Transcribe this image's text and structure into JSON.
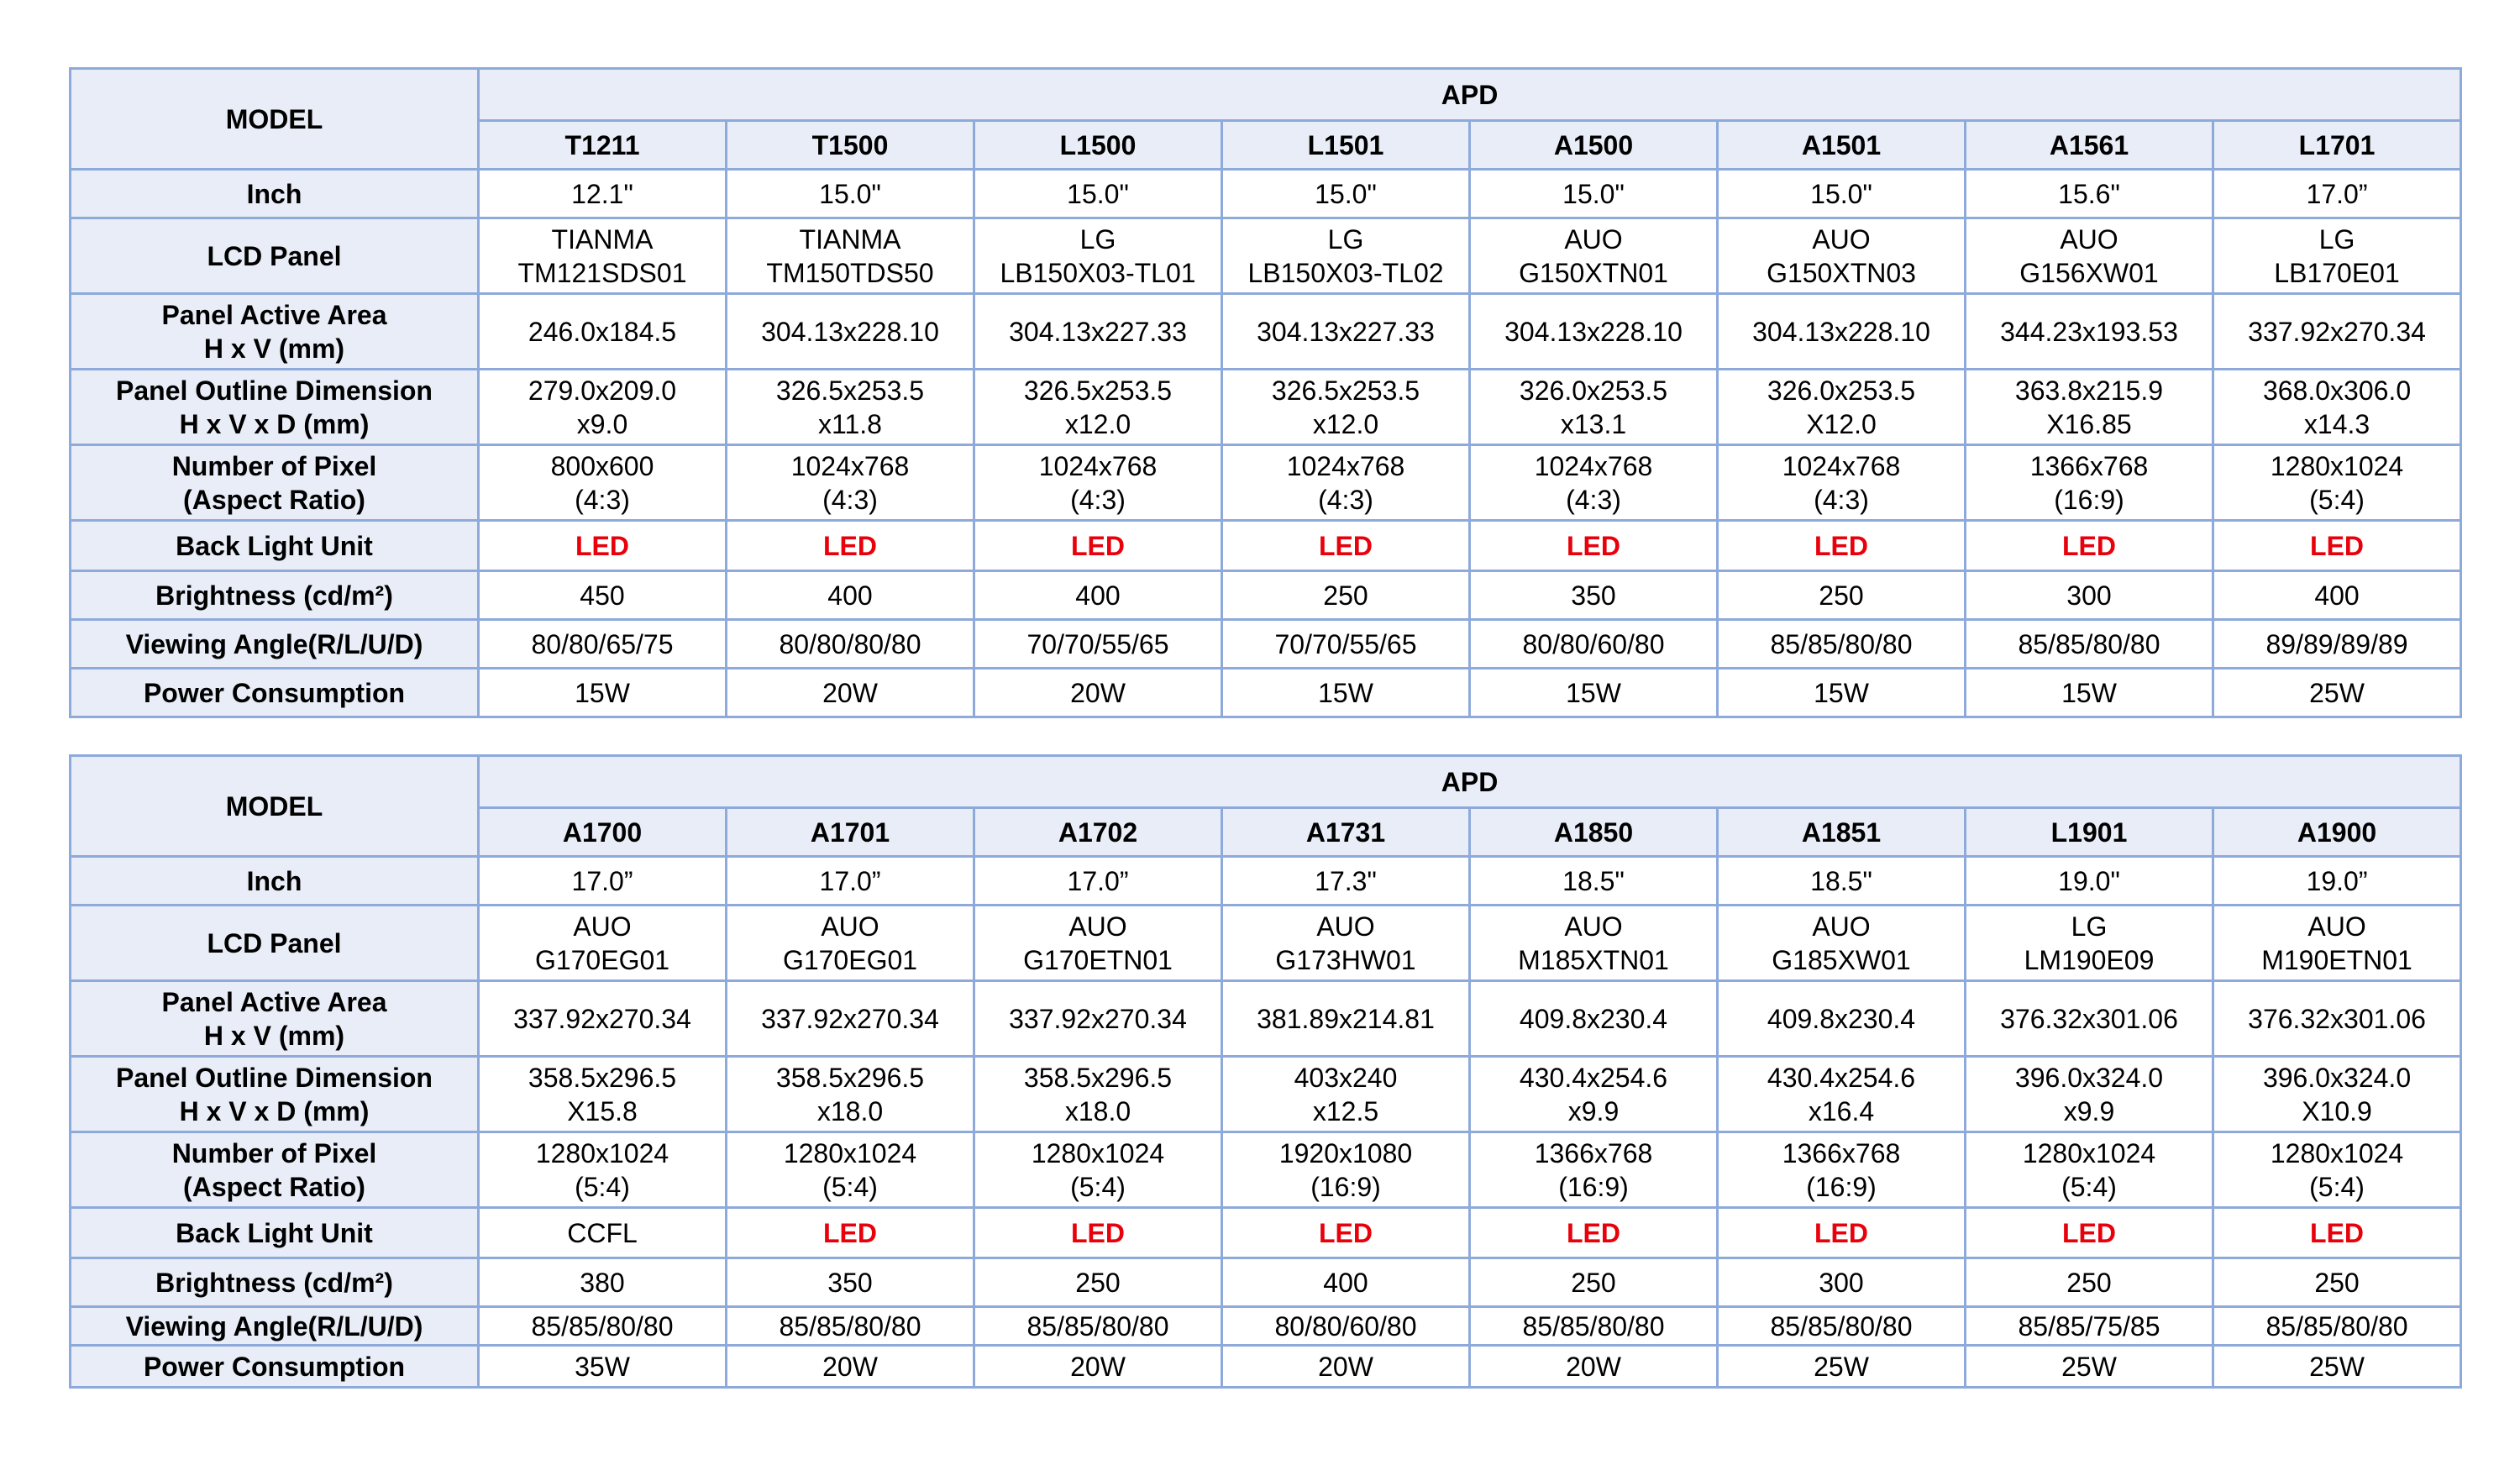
{
  "tables": [
    {
      "header": {
        "model_label": "MODEL",
        "group": "APD"
      },
      "models": [
        "T1211",
        "T1500",
        "L1500",
        "L1501",
        "A1500",
        "A1501",
        "A1561",
        "L1701"
      ],
      "rows": [
        {
          "label": [
            "Inch"
          ],
          "values": [
            [
              "12.1\""
            ],
            [
              "15.0\""
            ],
            [
              "15.0\""
            ],
            [
              "15.0\""
            ],
            [
              "15.0\""
            ],
            [
              "15.0\""
            ],
            [
              "15.6\""
            ],
            [
              "17.0”"
            ]
          ]
        },
        {
          "label": [
            "LCD Panel"
          ],
          "values": [
            [
              "TIANMA",
              "TM121SDS01"
            ],
            [
              "TIANMA",
              "TM150TDS50"
            ],
            [
              "LG",
              "LB150X03-TL01"
            ],
            [
              "LG",
              "LB150X03-TL02"
            ],
            [
              "AUO",
              "G150XTN01"
            ],
            [
              "AUO",
              "G150XTN03"
            ],
            [
              "AUO",
              "G156XW01"
            ],
            [
              "LG",
              "LB170E01"
            ]
          ]
        },
        {
          "label": [
            "Panel Active Area",
            "H x V (mm)"
          ],
          "values": [
            [
              "246.0x184.5"
            ],
            [
              "304.13x228.10"
            ],
            [
              "304.13x227.33"
            ],
            [
              "304.13x227.33"
            ],
            [
              "304.13x228.10"
            ],
            [
              "304.13x228.10"
            ],
            [
              "344.23x193.53"
            ],
            [
              "337.92x270.34"
            ]
          ]
        },
        {
          "label": [
            "Panel Outline Dimension",
            "H x V x D (mm)"
          ],
          "values": [
            [
              "279.0x209.0",
              "x9.0"
            ],
            [
              "326.5x253.5",
              "x11.8"
            ],
            [
              "326.5x253.5",
              "x12.0"
            ],
            [
              "326.5x253.5",
              "x12.0"
            ],
            [
              "326.0x253.5",
              "x13.1"
            ],
            [
              "326.0x253.5",
              "X12.0"
            ],
            [
              "363.8x215.9",
              "X16.85"
            ],
            [
              "368.0x306.0",
              "x14.3"
            ]
          ]
        },
        {
          "label": [
            "Number of Pixel",
            "(Aspect Ratio)"
          ],
          "values": [
            [
              "800x600",
              "(4:3)"
            ],
            [
              "1024x768",
              "(4:3)"
            ],
            [
              "1024x768",
              "(4:3)"
            ],
            [
              "1024x768",
              "(4:3)"
            ],
            [
              "1024x768",
              "(4:3)"
            ],
            [
              "1024x768",
              "(4:3)"
            ],
            [
              "1366x768",
              "(16:9)"
            ],
            [
              "1280x1024",
              "(5:4)"
            ]
          ]
        },
        {
          "label": [
            "Back Light Unit"
          ],
          "values": [
            [
              "LED"
            ],
            [
              "LED"
            ],
            [
              "LED"
            ],
            [
              "LED"
            ],
            [
              "LED"
            ],
            [
              "LED"
            ],
            [
              "LED"
            ],
            [
              "LED"
            ]
          ]
        },
        {
          "label": [
            "Brightness (cd/m²)"
          ],
          "values": [
            [
              "450"
            ],
            [
              "400"
            ],
            [
              "400"
            ],
            [
              "250"
            ],
            [
              "350"
            ],
            [
              "250"
            ],
            [
              "300"
            ],
            [
              "400"
            ]
          ]
        },
        {
          "label": [
            "Viewing Angle(R/L/U/D)"
          ],
          "values": [
            [
              "80/80/65/75"
            ],
            [
              "80/80/80/80"
            ],
            [
              "70/70/55/65"
            ],
            [
              "70/70/55/65"
            ],
            [
              "80/80/60/80"
            ],
            [
              "85/85/80/80"
            ],
            [
              "85/85/80/80"
            ],
            [
              "89/89/89/89"
            ]
          ]
        },
        {
          "label": [
            "Power Consumption"
          ],
          "values": [
            [
              "15W"
            ],
            [
              "20W"
            ],
            [
              "20W"
            ],
            [
              "15W"
            ],
            [
              "15W"
            ],
            [
              "15W"
            ],
            [
              "15W"
            ],
            [
              "25W"
            ]
          ]
        }
      ]
    },
    {
      "header": {
        "model_label": "MODEL",
        "group": "APD"
      },
      "models": [
        "A1700",
        "A1701",
        "A1702",
        "A1731",
        "A1850",
        "A1851",
        "L1901",
        "A1900"
      ],
      "rows": [
        {
          "label": [
            "Inch"
          ],
          "values": [
            [
              "17.0”"
            ],
            [
              "17.0”"
            ],
            [
              "17.0”"
            ],
            [
              "17.3\""
            ],
            [
              "18.5\""
            ],
            [
              "18.5\""
            ],
            [
              "19.0\""
            ],
            [
              "19.0”"
            ]
          ]
        },
        {
          "label": [
            "LCD Panel"
          ],
          "values": [
            [
              "AUO",
              "G170EG01"
            ],
            [
              "AUO",
              "G170EG01"
            ],
            [
              "AUO",
              "G170ETN01"
            ],
            [
              "AUO",
              "G173HW01"
            ],
            [
              "AUO",
              "M185XTN01"
            ],
            [
              "AUO",
              "G185XW01"
            ],
            [
              "LG",
              "LM190E09"
            ],
            [
              "AUO",
              "M190ETN01"
            ]
          ]
        },
        {
          "label": [
            "Panel Active Area",
            "H x V (mm)"
          ],
          "values": [
            [
              "337.92x270.34"
            ],
            [
              "337.92x270.34"
            ],
            [
              "337.92x270.34"
            ],
            [
              "381.89x214.81"
            ],
            [
              "409.8x230.4"
            ],
            [
              "409.8x230.4"
            ],
            [
              "376.32x301.06"
            ],
            [
              "376.32x301.06"
            ]
          ]
        },
        {
          "label": [
            "Panel Outline Dimension",
            "H x V x D (mm)"
          ],
          "values": [
            [
              "358.5x296.5",
              "X15.8"
            ],
            [
              "358.5x296.5",
              "x18.0"
            ],
            [
              "358.5x296.5",
              "x18.0"
            ],
            [
              "403x240",
              "x12.5"
            ],
            [
              "430.4x254.6",
              "x9.9"
            ],
            [
              "430.4x254.6",
              "x16.4"
            ],
            [
              "396.0x324.0",
              "x9.9"
            ],
            [
              "396.0x324.0",
              "X10.9"
            ]
          ]
        },
        {
          "label": [
            "Number of Pixel",
            "(Aspect Ratio)"
          ],
          "values": [
            [
              "1280x1024",
              "(5:4)"
            ],
            [
              "1280x1024",
              "(5:4)"
            ],
            [
              "1280x1024",
              "(5:4)"
            ],
            [
              "1920x1080",
              "(16:9)"
            ],
            [
              "1366x768",
              "(16:9)"
            ],
            [
              "1366x768",
              "(16:9)"
            ],
            [
              "1280x1024",
              "(5:4)"
            ],
            [
              "1280x1024",
              "(5:4)"
            ]
          ]
        },
        {
          "label": [
            "Back Light Unit"
          ],
          "values": [
            [
              "CCFL"
            ],
            [
              "LED"
            ],
            [
              "LED"
            ],
            [
              "LED"
            ],
            [
              "LED"
            ],
            [
              "LED"
            ],
            [
              "LED"
            ],
            [
              "LED"
            ]
          ]
        },
        {
          "label": [
            "Brightness (cd/m²)"
          ],
          "values": [
            [
              "380"
            ],
            [
              "350"
            ],
            [
              "250"
            ],
            [
              "400"
            ],
            [
              "250"
            ],
            [
              "300"
            ],
            [
              "250"
            ],
            [
              "250"
            ]
          ]
        },
        {
          "label": [
            "Viewing Angle(R/L/U/D)"
          ],
          "values": [
            [
              "85/85/80/80"
            ],
            [
              "85/85/80/80"
            ],
            [
              "85/85/80/80"
            ],
            [
              "80/80/60/80"
            ],
            [
              "85/85/80/80"
            ],
            [
              "85/85/80/80"
            ],
            [
              "85/85/75/85"
            ],
            [
              "85/85/80/80"
            ]
          ]
        },
        {
          "label": [
            "Power Consumption"
          ],
          "values": [
            [
              "35W"
            ],
            [
              "20W"
            ],
            [
              "20W"
            ],
            [
              "20W"
            ],
            [
              "20W"
            ],
            [
              "25W"
            ],
            [
              "25W"
            ],
            [
              "25W"
            ]
          ]
        }
      ]
    }
  ],
  "highlight": {
    "led_color": "#e8000b",
    "header_fill": "#e8edf7",
    "border": "#8eaadb"
  }
}
